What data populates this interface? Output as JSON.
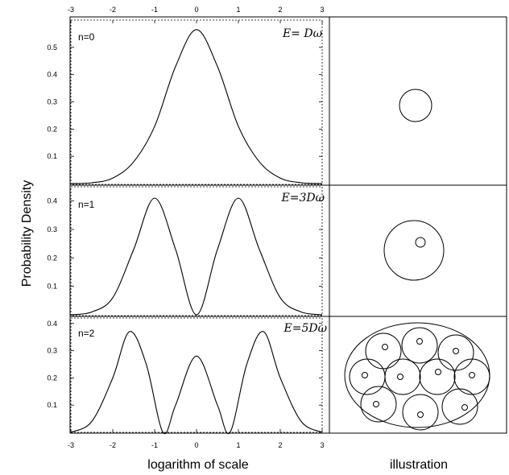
{
  "chart_data": [
    {
      "type": "line",
      "panel_label": "n=0",
      "energy_label": "E= Dω",
      "xlim": [
        -3,
        3
      ],
      "ylim": [
        0,
        0.6
      ],
      "x_ticks": [
        -3,
        -2,
        -1,
        0,
        1,
        2,
        3
      ],
      "y_ticks": [
        0.1,
        0.2,
        0.3,
        0.4,
        0.5
      ],
      "series": [
        {
          "x": [
            -3,
            -2.5,
            -2,
            -1.5,
            -1,
            -0.5,
            0,
            0.5,
            1,
            1.5,
            2,
            2.5,
            3
          ],
          "y": [
            0,
            0.003,
            0.02,
            0.08,
            0.21,
            0.43,
            0.565,
            0.43,
            0.21,
            0.08,
            0.02,
            0.003,
            0
          ]
        }
      ]
    },
    {
      "type": "line",
      "panel_label": "n=1",
      "energy_label": "E=3Dω",
      "xlim": [
        -3,
        3
      ],
      "ylim": [
        0,
        0.45
      ],
      "y_ticks": [
        0.1,
        0.2,
        0.3,
        0.4
      ],
      "series": [
        {
          "x": [
            -3,
            -2.5,
            -2,
            -1.5,
            -1,
            -0.5,
            0,
            0.5,
            1,
            1.5,
            2,
            2.5,
            3
          ],
          "y": [
            0,
            0.01,
            0.06,
            0.23,
            0.41,
            0.23,
            0,
            0.23,
            0.41,
            0.23,
            0.06,
            0.01,
            0
          ]
        }
      ]
    },
    {
      "type": "line",
      "panel_label": "n=2",
      "energy_label": "E=5Dω",
      "xlim": [
        -3,
        3
      ],
      "ylim": [
        0,
        0.42
      ],
      "x_ticks": [
        -3,
        -2,
        -1,
        0,
        1,
        2,
        3
      ],
      "y_ticks": [
        0.1,
        0.2,
        0.3,
        0.4
      ],
      "series": [
        {
          "x": [
            -3,
            -2.5,
            -2,
            -1.6,
            -1.2,
            -0.8,
            -0.5,
            0,
            0.5,
            0.8,
            1.2,
            1.6,
            2,
            2.5,
            3
          ],
          "y": [
            0,
            0.04,
            0.2,
            0.37,
            0.25,
            0,
            0.1,
            0.28,
            0.1,
            0,
            0.25,
            0.37,
            0.2,
            0.04,
            0
          ]
        }
      ]
    }
  ],
  "axes": {
    "xlabel": "logarithm of scale",
    "ylabel": "Probability Density",
    "right_label": "illustration"
  },
  "illustration": {
    "n0": "single circle",
    "n1": "circle with one small inner circle",
    "n2": "ellipse containing 10 circles each with a small inner circle"
  },
  "colors": {
    "line": "#000000",
    "background": "#ffffff"
  }
}
